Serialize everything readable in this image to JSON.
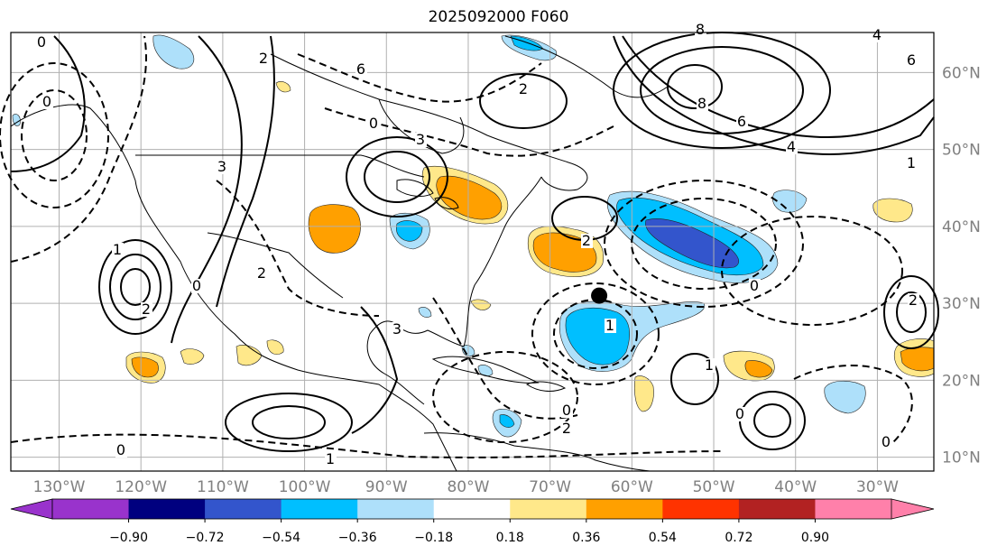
{
  "title": "2025092000 F060",
  "map": {
    "lat_labels": [
      {
        "text": "60°N",
        "lat": 60
      },
      {
        "text": "50°N",
        "lat": 50
      },
      {
        "text": "40°N",
        "lat": 40
      },
      {
        "text": "30°N",
        "lat": 30
      },
      {
        "text": "20°N",
        "lat": 20
      },
      {
        "text": "10°N",
        "lat": 10
      }
    ],
    "lon_labels": [
      {
        "text": "130°W",
        "lon": -130
      },
      {
        "text": "120°W",
        "lon": -120
      },
      {
        "text": "110°W",
        "lon": -110
      },
      {
        "text": "100°W",
        "lon": -100
      },
      {
        "text": "90°W",
        "lon": -90
      },
      {
        "text": "80°W",
        "lon": -80
      },
      {
        "text": "70°W",
        "lon": -70
      },
      {
        "text": "60°W",
        "lon": -60
      },
      {
        "text": "50°W",
        "lon": -50
      },
      {
        "text": "40°W",
        "lon": -40
      },
      {
        "text": "30°W",
        "lon": -30
      }
    ],
    "contour_labels": [
      "0",
      "2",
      "6",
      "8",
      "6",
      "4",
      "3",
      "1",
      "2",
      "0",
      "2",
      "3",
      "2",
      "0",
      "3",
      "2",
      "1",
      "0",
      "2",
      "0",
      "1",
      "0",
      "1",
      "0",
      "0",
      "8",
      "4",
      "6",
      "2",
      "1",
      "0"
    ],
    "storm_marker": {
      "lat": 31,
      "lon": -64
    }
  },
  "colorbar": {
    "ticks": [
      "−0.90",
      "−0.72",
      "−0.54",
      "−0.36",
      "−0.18",
      "0.18",
      "0.36",
      "0.54",
      "0.72",
      "0.90"
    ],
    "colors": [
      "#9933cc",
      "#00007f",
      "#3355cc",
      "#00bfff",
      "#aee0fa",
      "#ffffff",
      "#ffe88a",
      "#ffa000",
      "#ff3300",
      "#b22222",
      "#ff80aa",
      "#ff80aa"
    ],
    "under_color": "#9933cc",
    "over_color": "#ff80aa"
  }
}
